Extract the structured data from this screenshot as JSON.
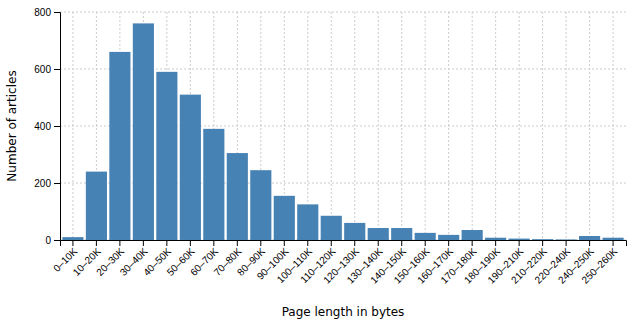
{
  "chart_data": {
    "type": "bar",
    "categories": [
      "0–10K",
      "10–20K",
      "20–30K",
      "30–40K",
      "40–50K",
      "50–60K",
      "60–70K",
      "70–80K",
      "80–90K",
      "90–100K",
      "100–110K",
      "110–120K",
      "120–130K",
      "130–140K",
      "140–150K",
      "150–160K",
      "160–170K",
      "170–180K",
      "180–190K",
      "190–210K",
      "210–220K",
      "220–240K",
      "240–250K",
      "250–260K"
    ],
    "values": [
      10,
      240,
      660,
      760,
      590,
      510,
      390,
      305,
      245,
      155,
      125,
      85,
      60,
      42,
      42,
      25,
      18,
      35,
      8,
      5,
      3,
      2,
      14,
      8
    ],
    "xlabel": "Page length in bytes",
    "ylabel": "Number of articles",
    "ylim": [
      0,
      800
    ],
    "yticks": [
      0,
      200,
      400,
      600,
      800
    ],
    "grid": true
  }
}
